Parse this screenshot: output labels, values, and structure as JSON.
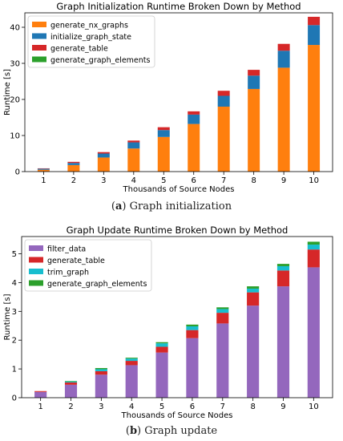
{
  "captions": [
    {
      "label": "a",
      "text": "Graph initialization"
    },
    {
      "label": "b",
      "text": "Graph update"
    }
  ],
  "chart_data": [
    {
      "type": "bar",
      "stacked": true,
      "title": "Graph Initialization Runtime Broken Down by Method",
      "xlabel": "Thousands of Source Nodes",
      "ylabel": "Runtime [s]",
      "categories": [
        "1",
        "2",
        "3",
        "4",
        "5",
        "6",
        "7",
        "8",
        "9",
        "10"
      ],
      "ylim": [
        0,
        44
      ],
      "yticks": [
        0,
        10,
        20,
        30,
        40
      ],
      "legend_position": "upper-left",
      "series": [
        {
          "name": "generate_nx_graphs",
          "color": "#ff7f0e",
          "values": [
            0.5,
            1.8,
            3.9,
            6.4,
            9.6,
            13.2,
            18.0,
            22.9,
            28.8,
            35.1
          ]
        },
        {
          "name": "initialize_graph_state",
          "color": "#1f77b4",
          "values": [
            0.3,
            0.6,
            1.1,
            1.7,
            1.9,
            2.6,
            3.0,
            3.7,
            4.7,
            5.5
          ]
        },
        {
          "name": "generate_table",
          "color": "#d62728",
          "values": [
            0.1,
            0.3,
            0.4,
            0.5,
            0.8,
            0.9,
            1.4,
            1.6,
            1.9,
            2.3
          ]
        },
        {
          "name": "generate_graph_elements",
          "color": "#2ca02c",
          "values": [
            0.0,
            0.0,
            0.0,
            0.0,
            0.0,
            0.0,
            0.0,
            0.0,
            0.0,
            0.0
          ]
        }
      ]
    },
    {
      "type": "bar",
      "stacked": true,
      "title": "Graph Update Runtime Broken Down by Method",
      "xlabel": "Thousands of Source Nodes",
      "ylabel": "Runtime [s]",
      "categories": [
        "1",
        "2",
        "3",
        "4",
        "5",
        "6",
        "7",
        "8",
        "9",
        "10"
      ],
      "ylim": [
        0,
        5.6
      ],
      "yticks": [
        0,
        1,
        2,
        3,
        4,
        5
      ],
      "legend_position": "upper-left",
      "series": [
        {
          "name": "filter_data",
          "color": "#9467bd",
          "values": [
            0.2,
            0.45,
            0.8,
            1.13,
            1.57,
            2.07,
            2.58,
            3.2,
            3.87,
            4.53
          ]
        },
        {
          "name": "generate_table",
          "color": "#d62728",
          "values": [
            0.03,
            0.08,
            0.12,
            0.15,
            0.2,
            0.28,
            0.37,
            0.46,
            0.55,
            0.62
          ]
        },
        {
          "name": "trim_graph",
          "color": "#17becf",
          "values": [
            0.0,
            0.03,
            0.07,
            0.08,
            0.12,
            0.13,
            0.13,
            0.13,
            0.15,
            0.17
          ]
        },
        {
          "name": "generate_graph_elements",
          "color": "#2ca02c",
          "values": [
            0.0,
            0.02,
            0.04,
            0.03,
            0.04,
            0.06,
            0.06,
            0.08,
            0.08,
            0.1
          ]
        }
      ]
    }
  ]
}
